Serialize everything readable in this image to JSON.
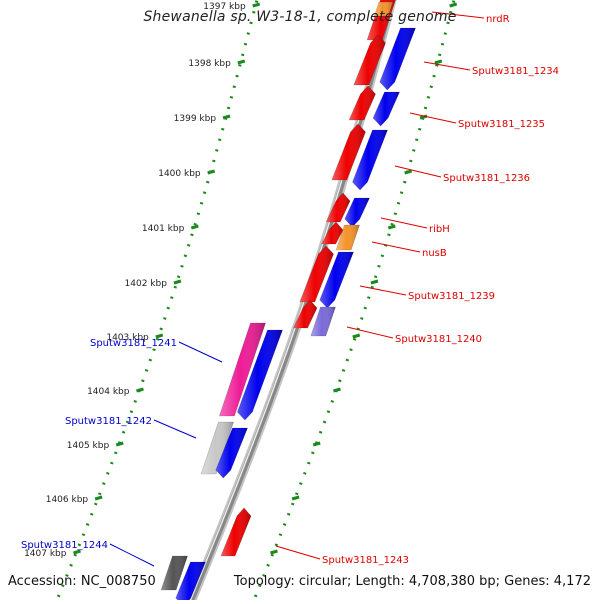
{
  "title": "Shewanella sp. W3-18-1, complete genome",
  "footer": {
    "accession": "Accession: NC_008750",
    "topology": "Topology: circular; Length: 4,708,380 bp; Genes: 4,172"
  },
  "colors": {
    "backbone": "#888888",
    "forward_gene": "#0000ee",
    "reverse_gene": "#ee0000",
    "pseudo_gene": "#ee1c96",
    "gray_gene": "#c8c8c8",
    "dark_gray_gene": "#555555",
    "rna_gene": "#f4932a",
    "violet_gene": "#7a6ad9",
    "tick": "#1a8a1a",
    "label_right": "#dd0000",
    "label_left": "#0000cc"
  },
  "ticks": [
    {
      "label": "1397 kbp"
    },
    {
      "label": "1398 kbp"
    },
    {
      "label": "1399 kbp"
    },
    {
      "label": "1400 kbp"
    },
    {
      "label": "1401 kbp"
    },
    {
      "label": "1402 kbp"
    },
    {
      "label": "1403 kbp"
    },
    {
      "label": "1404 kbp"
    },
    {
      "label": "1405 kbp"
    },
    {
      "label": "1406 kbp"
    },
    {
      "label": "1407 kbp"
    }
  ],
  "gene_labels": [
    {
      "id": "nrdR",
      "text": "nrdR",
      "side": "right"
    },
    {
      "id": "sputw3181-1234",
      "text": "Sputw3181_1234",
      "side": "right"
    },
    {
      "id": "sputw3181-1235",
      "text": "Sputw3181_1235",
      "side": "right"
    },
    {
      "id": "sputw3181-1236",
      "text": "Sputw3181_1236",
      "side": "right"
    },
    {
      "id": "ribh",
      "text": "ribH",
      "side": "right"
    },
    {
      "id": "nusb",
      "text": "nusB",
      "side": "right"
    },
    {
      "id": "sputw3181-1239",
      "text": "Sputw3181_1239",
      "side": "right"
    },
    {
      "id": "sputw3181-1240",
      "text": "Sputw3181_1240",
      "side": "right"
    },
    {
      "id": "sputw3181-1243",
      "text": "Sputw3181_1243",
      "side": "right"
    },
    {
      "id": "sputw3181-1241",
      "text": "Sputw3181_1241",
      "side": "left"
    },
    {
      "id": "sputw3181-1242",
      "text": "Sputw3181_1242",
      "side": "left"
    },
    {
      "id": "sputw3181-1244",
      "text": "Sputw3181_1244",
      "side": "left"
    }
  ]
}
